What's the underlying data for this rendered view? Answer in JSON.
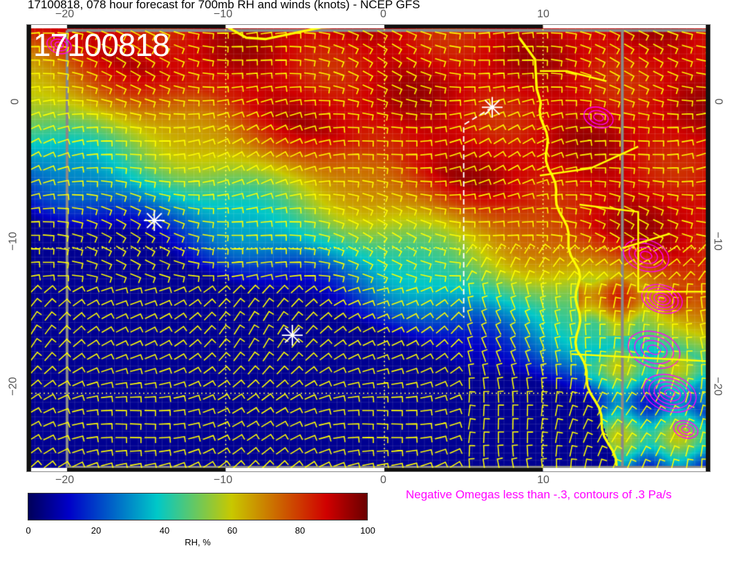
{
  "title": "17100818, 078 hour forecast for 700mb RH and winds (knots) - NCEP GFS",
  "date_label": "17100818",
  "map": {
    "lon_ticks": [
      "−20",
      "−10",
      "0",
      "10"
    ],
    "lat_ticks": [
      "0",
      "−10",
      "−20"
    ],
    "lon_range": [
      -22.5,
      20.5
    ],
    "lat_range": [
      5.5,
      -25.3
    ],
    "markers": [
      {
        "lon": -14.5,
        "lat": -8.1
      },
      {
        "lon": -5.8,
        "lat": -16.0
      },
      {
        "lon": 6.8,
        "lat": -0.3
      }
    ],
    "coast_color": "#ffff00",
    "omega_color": "#ff00ff",
    "wind_barb_color": "#ffff00"
  },
  "omega_note": "Negative Omegas less than -.3, contours of .3 Pa/s",
  "colorbar": {
    "ticks": [
      "0",
      "20",
      "40",
      "60",
      "80",
      "100"
    ],
    "label": "RH, %",
    "range": [
      0,
      100
    ],
    "stops": [
      "#00005a",
      "#0000c8",
      "#00c8c8",
      "#c8c800",
      "#d00000",
      "#6a0000"
    ]
  }
}
